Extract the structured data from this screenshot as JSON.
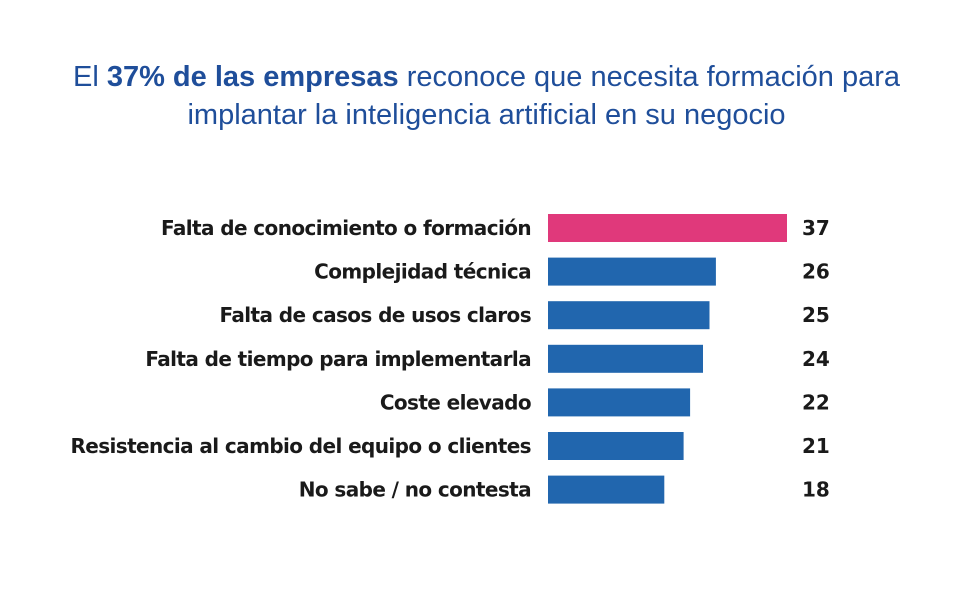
{
  "title": {
    "part1": "El ",
    "highlight": "37% de las empresas",
    "part2": " reconoce que necesita formación para",
    "line2": "implantar la inteligencia artificial en su negocio"
  },
  "chart_data": {
    "type": "bar",
    "orientation": "horizontal",
    "categories": [
      "Falta de conocimiento o formación",
      "Complejidad técnica",
      "Falta de casos de usos claros",
      "Falta de tiempo para implementarla",
      "Coste elevado",
      "Resistencia al cambio del equipo o clientes",
      "No sabe / no contesta"
    ],
    "values": [
      37,
      26,
      25,
      24,
      22,
      21,
      18
    ],
    "data_labels": [
      "37",
      "26",
      "25",
      "24",
      "22",
      "21",
      "18"
    ],
    "colors": [
      "#e0397b",
      "#2166ae",
      "#2166ae",
      "#2166ae",
      "#2166ae",
      "#2166ae",
      "#2166ae"
    ],
    "xlim": [
      0,
      37
    ],
    "grid": false,
    "legend": "none"
  }
}
